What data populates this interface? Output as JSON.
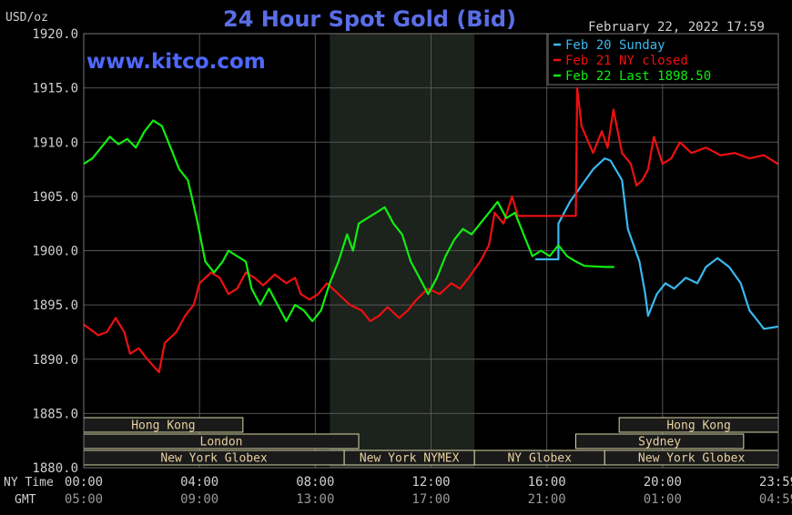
{
  "chart_data": {
    "type": "line",
    "title": "24 Hour Spot Gold (Bid)",
    "ylabel": "USD/oz",
    "watermark": "www.kitco.com",
    "timestamp": "February 22, 2022 17:59",
    "ylim": [
      1880,
      1920
    ],
    "y_ticks": [
      "1920.0",
      "1915.0",
      "1910.0",
      "1905.0",
      "1900.0",
      "1895.0",
      "1890.0",
      "1885.0",
      "1880.0"
    ],
    "x_ticks_ny": [
      "00:00",
      "04:00",
      "08:00",
      "12:00",
      "16:00",
      "20:00",
      "23:59"
    ],
    "x_ticks_gmt": [
      "05:00",
      "09:00",
      "13:00",
      "17:00",
      "21:00",
      "01:00",
      "04:59"
    ],
    "ny_time_label": "NY Time",
    "gmt_label": "GMT",
    "xlim_hours": [
      0,
      24
    ],
    "shaded_session_hours": [
      8.5,
      13.5
    ],
    "legend_position": "top-right",
    "colors": {
      "background": "#000000",
      "grid": "#555555",
      "title": "#5a6ee8",
      "watermark": "#4f68ff",
      "axis_text": "#d0d0d0",
      "shade": "#1c221c",
      "market_box_fill": "#1a1a1a",
      "market_box_border": "#d8d8a8",
      "market_box_text": "#e8d0a0"
    },
    "series": [
      {
        "name": "Feb 20 Sunday",
        "color": "#3ab8f0",
        "points": [
          [
            15.6,
            1899.2
          ],
          [
            16.4,
            1899.2
          ],
          [
            16.4,
            1902.5
          ],
          [
            16.8,
            1904.5
          ],
          [
            17.2,
            1906.0
          ],
          [
            17.6,
            1907.5
          ],
          [
            18.0,
            1908.5
          ],
          [
            18.2,
            1908.3
          ],
          [
            18.6,
            1906.5
          ],
          [
            18.8,
            1902.0
          ],
          [
            19.2,
            1899.0
          ],
          [
            19.4,
            1896.0
          ],
          [
            19.5,
            1894.0
          ],
          [
            19.8,
            1896.0
          ],
          [
            20.1,
            1897.0
          ],
          [
            20.4,
            1896.5
          ],
          [
            20.8,
            1897.5
          ],
          [
            21.2,
            1897.0
          ],
          [
            21.5,
            1898.5
          ],
          [
            21.9,
            1899.3
          ],
          [
            22.3,
            1898.5
          ],
          [
            22.7,
            1897.0
          ],
          [
            23.0,
            1894.5
          ],
          [
            23.3,
            1893.5
          ],
          [
            23.5,
            1892.8
          ],
          [
            23.98,
            1893.0
          ]
        ]
      },
      {
        "name": "Feb 21 NY closed",
        "color": "#ee1010",
        "points": [
          [
            0.0,
            1893.2
          ],
          [
            0.5,
            1892.2
          ],
          [
            0.8,
            1892.5
          ],
          [
            1.1,
            1893.8
          ],
          [
            1.4,
            1892.5
          ],
          [
            1.6,
            1890.5
          ],
          [
            1.9,
            1891.0
          ],
          [
            2.2,
            1890.0
          ],
          [
            2.6,
            1888.8
          ],
          [
            2.8,
            1891.5
          ],
          [
            3.2,
            1892.5
          ],
          [
            3.5,
            1894.0
          ],
          [
            3.8,
            1895.0
          ],
          [
            4.0,
            1897.0
          ],
          [
            4.4,
            1898.0
          ],
          [
            4.7,
            1897.5
          ],
          [
            5.0,
            1896.0
          ],
          [
            5.3,
            1896.5
          ],
          [
            5.6,
            1898.0
          ],
          [
            5.9,
            1897.5
          ],
          [
            6.2,
            1896.8
          ],
          [
            6.6,
            1897.8
          ],
          [
            7.0,
            1897.0
          ],
          [
            7.3,
            1897.5
          ],
          [
            7.5,
            1896.0
          ],
          [
            7.8,
            1895.5
          ],
          [
            8.1,
            1896.0
          ],
          [
            8.4,
            1897.0
          ],
          [
            8.8,
            1896.0
          ],
          [
            9.2,
            1895.0
          ],
          [
            9.6,
            1894.5
          ],
          [
            9.9,
            1893.5
          ],
          [
            10.2,
            1894.0
          ],
          [
            10.5,
            1894.8
          ],
          [
            10.9,
            1893.8
          ],
          [
            11.2,
            1894.5
          ],
          [
            11.5,
            1895.5
          ],
          [
            11.9,
            1896.5
          ],
          [
            12.3,
            1896.0
          ],
          [
            12.7,
            1897.0
          ],
          [
            13.0,
            1896.5
          ],
          [
            13.3,
            1897.5
          ],
          [
            13.7,
            1899.0
          ],
          [
            14.0,
            1900.5
          ],
          [
            14.2,
            1903.5
          ],
          [
            14.5,
            1902.5
          ],
          [
            14.8,
            1905.0
          ],
          [
            15.0,
            1903.2
          ],
          [
            17.0,
            1903.2
          ],
          [
            17.05,
            1915.0
          ],
          [
            17.2,
            1911.5
          ],
          [
            17.6,
            1909.0
          ],
          [
            17.9,
            1911.0
          ],
          [
            18.1,
            1909.5
          ],
          [
            18.3,
            1913.0
          ],
          [
            18.6,
            1909.0
          ],
          [
            18.9,
            1908.0
          ],
          [
            19.1,
            1906.0
          ],
          [
            19.3,
            1906.5
          ],
          [
            19.5,
            1907.5
          ],
          [
            19.7,
            1910.5
          ],
          [
            20.0,
            1908.0
          ],
          [
            20.3,
            1908.5
          ],
          [
            20.6,
            1910.0
          ],
          [
            21.0,
            1909.0
          ],
          [
            21.5,
            1909.5
          ],
          [
            22.0,
            1908.8
          ],
          [
            22.5,
            1909.0
          ],
          [
            23.0,
            1908.5
          ],
          [
            23.5,
            1908.8
          ],
          [
            23.98,
            1908.0
          ]
        ]
      },
      {
        "name": "Feb 22 Last 1898.50",
        "color": "#10ee10",
        "points": [
          [
            0.0,
            1908.0
          ],
          [
            0.3,
            1908.5
          ],
          [
            0.6,
            1909.5
          ],
          [
            0.9,
            1910.5
          ],
          [
            1.2,
            1909.8
          ],
          [
            1.5,
            1910.3
          ],
          [
            1.8,
            1909.5
          ],
          [
            2.1,
            1911.0
          ],
          [
            2.4,
            1912.0
          ],
          [
            2.7,
            1911.5
          ],
          [
            3.0,
            1909.5
          ],
          [
            3.3,
            1907.5
          ],
          [
            3.6,
            1906.5
          ],
          [
            3.9,
            1903.0
          ],
          [
            4.2,
            1899.0
          ],
          [
            4.5,
            1898.0
          ],
          [
            4.8,
            1899.0
          ],
          [
            5.0,
            1900.0
          ],
          [
            5.3,
            1899.5
          ],
          [
            5.6,
            1899.0
          ],
          [
            5.8,
            1896.5
          ],
          [
            6.1,
            1895.0
          ],
          [
            6.4,
            1896.5
          ],
          [
            6.7,
            1895.0
          ],
          [
            7.0,
            1893.5
          ],
          [
            7.3,
            1895.0
          ],
          [
            7.6,
            1894.5
          ],
          [
            7.9,
            1893.5
          ],
          [
            8.2,
            1894.5
          ],
          [
            8.5,
            1897.0
          ],
          [
            8.8,
            1899.0
          ],
          [
            9.1,
            1901.5
          ],
          [
            9.3,
            1900.0
          ],
          [
            9.5,
            1902.5
          ],
          [
            9.8,
            1903.0
          ],
          [
            10.1,
            1903.5
          ],
          [
            10.4,
            1904.0
          ],
          [
            10.7,
            1902.5
          ],
          [
            11.0,
            1901.5
          ],
          [
            11.3,
            1899.0
          ],
          [
            11.6,
            1897.5
          ],
          [
            11.9,
            1896.0
          ],
          [
            12.2,
            1897.5
          ],
          [
            12.5,
            1899.5
          ],
          [
            12.8,
            1901.0
          ],
          [
            13.1,
            1902.0
          ],
          [
            13.4,
            1901.5
          ],
          [
            13.7,
            1902.5
          ],
          [
            14.0,
            1903.5
          ],
          [
            14.3,
            1904.5
          ],
          [
            14.6,
            1903.0
          ],
          [
            14.9,
            1903.5
          ],
          [
            15.2,
            1901.5
          ],
          [
            15.5,
            1899.5
          ],
          [
            15.8,
            1900.0
          ],
          [
            16.1,
            1899.5
          ],
          [
            16.4,
            1900.5
          ],
          [
            16.7,
            1899.5
          ],
          [
            17.0,
            1899.0
          ],
          [
            17.3,
            1898.6
          ],
          [
            18.0,
            1898.5
          ],
          [
            18.3,
            1898.5
          ]
        ]
      }
    ],
    "market_rows": [
      [
        {
          "label": "Hong Kong",
          "start": 0,
          "end": 5.5
        },
        {
          "label": "Hong Kong",
          "start": 18.5,
          "end": 24
        }
      ],
      [
        {
          "label": "London",
          "start": 0,
          "end": 9.5
        },
        {
          "label": "Sydney",
          "start": 17.0,
          "end": 22.8
        }
      ],
      [
        {
          "label": "New York Globex",
          "start": 0,
          "end": 9.0
        },
        {
          "label": "New York NYMEX",
          "start": 9.0,
          "end": 13.5
        },
        {
          "label": "NY Globex",
          "start": 13.5,
          "end": 18.0
        },
        {
          "label": "New York Globex",
          "start": 18.0,
          "end": 24
        }
      ]
    ]
  }
}
